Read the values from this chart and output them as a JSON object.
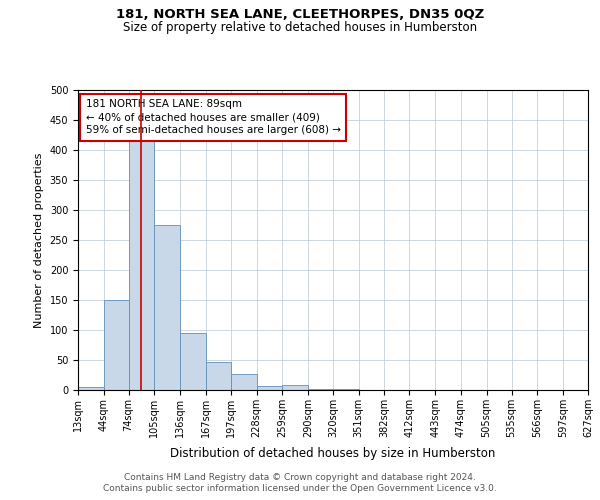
{
  "title": "181, NORTH SEA LANE, CLEETHORPES, DN35 0QZ",
  "subtitle": "Size of property relative to detached houses in Humberston",
  "xlabel": "Distribution of detached houses by size in Humberston",
  "ylabel": "Number of detached properties",
  "footer_line1": "Contains HM Land Registry data © Crown copyright and database right 2024.",
  "footer_line2": "Contains public sector information licensed under the Open Government Licence v3.0.",
  "bar_color": "#c8d8e8",
  "bar_edge_color": "#6090b8",
  "grid_color": "#b8c8d8",
  "annotation_text": "181 NORTH SEA LANE: 89sqm\n← 40% of detached houses are smaller (409)\n59% of semi-detached houses are larger (608) →",
  "annotation_box_color": "#cc0000",
  "red_line_color": "#cc0000",
  "bin_labels": [
    "13sqm",
    "44sqm",
    "74sqm",
    "105sqm",
    "136sqm",
    "167sqm",
    "197sqm",
    "228sqm",
    "259sqm",
    "290sqm",
    "320sqm",
    "351sqm",
    "382sqm",
    "412sqm",
    "443sqm",
    "474sqm",
    "505sqm",
    "535sqm",
    "566sqm",
    "597sqm",
    "627sqm"
  ],
  "bin_edges": [
    13,
    44,
    74,
    105,
    136,
    167,
    197,
    228,
    259,
    290,
    320,
    351,
    382,
    412,
    443,
    474,
    505,
    535,
    566,
    597,
    627
  ],
  "bar_heights": [
    5,
    150,
    420,
    275,
    95,
    47,
    27,
    7,
    9,
    2,
    1,
    0,
    0,
    0,
    0,
    0,
    0,
    0,
    0,
    0
  ],
  "red_line_x": 89,
  "ylim": [
    0,
    500
  ],
  "yticks": [
    0,
    50,
    100,
    150,
    200,
    250,
    300,
    350,
    400,
    450,
    500
  ],
  "title_fontsize": 9.5,
  "subtitle_fontsize": 8.5,
  "xlabel_fontsize": 8.5,
  "ylabel_fontsize": 8,
  "tick_fontsize": 7,
  "annotation_fontsize": 7.5,
  "footer_fontsize": 6.5,
  "background_color": "#ffffff"
}
